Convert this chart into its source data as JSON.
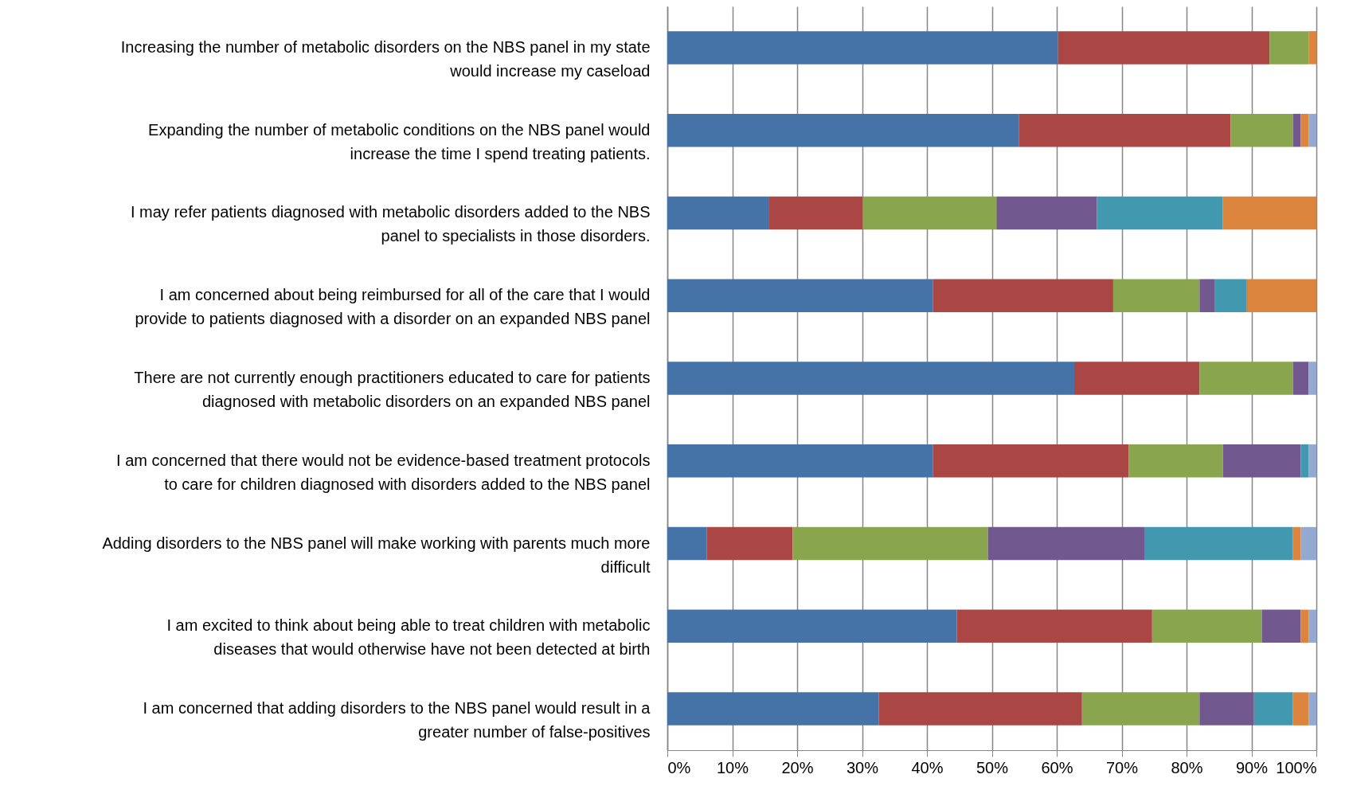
{
  "chart_data": {
    "type": "bar",
    "orientation": "horizontal",
    "stacked": true,
    "grid": "x",
    "categories": [
      "Increasing the number of metabolic disorders on the NBS panel in my state would increase my caseload",
      "Expanding the number of metabolic conditions on the NBS panel would increase the time I spend treating patients.",
      "I may refer patients diagnosed with metabolic disorders added to the NBS panel to specialists in those disorders.",
      "I am concerned about being reimbursed for all of the care that I would provide to patients diagnosed with a disorder on an expanded NBS panel",
      "There are not currently enough practitioners educated to care for patients diagnosed with metabolic disorders on an expanded NBS panel",
      "I am concerned that there would not be evidence-based treatment protocols to care for children diagnosed with disorders added to the NBS panel",
      "Adding disorders to the NBS panel will make working with parents much more difficult",
      "I am excited to think about being able to treat children with metabolic diseases that would otherwise have not been detected at birth",
      "I am concerned that adding disorders to the NBS panel would result in a greater number of false-positives"
    ],
    "series": [
      {
        "color": "#4572a7",
        "values": [
          60.2,
          54.2,
          15.7,
          40.9,
          62.7,
          40.9,
          6.1,
          44.6,
          32.6
        ]
      },
      {
        "color": "#aa4643",
        "values": [
          32.6,
          32.6,
          14.4,
          27.8,
          19.3,
          30.2,
          13.2,
          30.1,
          31.3
        ]
      },
      {
        "color": "#89a54e",
        "values": [
          6.0,
          9.6,
          20.6,
          13.3,
          14.4,
          14.5,
          30.1,
          16.9,
          18.1
        ]
      },
      {
        "color": "#71588f",
        "values": [
          0,
          1.2,
          15.5,
          2.3,
          2.4,
          12.0,
          24.1,
          6.0,
          8.4
        ]
      },
      {
        "color": "#4198af",
        "values": [
          0,
          0,
          19.4,
          4.9,
          0,
          1.2,
          22.9,
          0,
          6.0
        ]
      },
      {
        "color": "#db843d",
        "values": [
          1.2,
          1.2,
          14.4,
          10.8,
          0,
          0,
          1.2,
          1.2,
          2.4
        ]
      },
      {
        "color": "#93a9cf",
        "values": [
          0,
          1.2,
          0,
          0,
          1.2,
          1.2,
          2.4,
          1.2,
          1.2
        ]
      }
    ],
    "xlim": [
      0,
      100
    ],
    "xticks": [
      {
        "value": 0,
        "label": "0%"
      },
      {
        "value": 10,
        "label": "10%"
      },
      {
        "value": 20,
        "label": "20%"
      },
      {
        "value": 30,
        "label": "30%"
      },
      {
        "value": 40,
        "label": "40%"
      },
      {
        "value": 50,
        "label": "50%"
      },
      {
        "value": 60,
        "label": "60%"
      },
      {
        "value": 70,
        "label": "70%"
      },
      {
        "value": 80,
        "label": "80%"
      },
      {
        "value": 90,
        "label": "90%"
      },
      {
        "value": 100,
        "label": "100%"
      }
    ]
  }
}
